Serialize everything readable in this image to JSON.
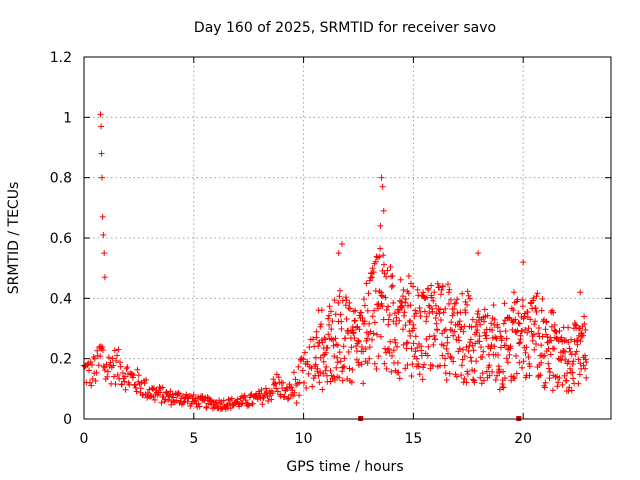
{
  "chart_data": {
    "type": "scatter",
    "title": "Day 160 of 2025, SRMTID for receiver savo",
    "xlabel": "GPS time / hours",
    "ylabel": "SRMTID / TECUs",
    "xlim": [
      0,
      24
    ],
    "ylim": [
      0,
      1.2
    ],
    "x_ticks": [
      0,
      5,
      10,
      15,
      20
    ],
    "x_tick_labels": [
      "0",
      "5",
      "10",
      "15",
      "20"
    ],
    "y_ticks": [
      0,
      0.2,
      0.4,
      0.6,
      0.8,
      1.0,
      1.2
    ],
    "y_tick_labels": [
      "0",
      "0.2",
      "0.4",
      "0.6",
      "0.8",
      "1",
      "1.2"
    ],
    "grid": true,
    "marker": "plus",
    "color": "#ff0000",
    "series": [
      {
        "name": "SRMTID",
        "envelope": {
          "x": [
            0.0,
            0.3,
            0.6,
            0.8,
            1.0,
            1.3,
            1.6,
            2.0,
            2.5,
            3.0,
            3.5,
            4.0,
            4.5,
            5.0,
            5.5,
            6.0,
            6.5,
            7.0,
            7.5,
            8.0,
            8.5,
            8.8,
            9.2,
            9.5,
            10.0,
            10.5,
            11.0,
            11.5,
            12.0,
            12.5,
            13.0,
            13.3,
            13.6,
            13.9,
            14.2,
            14.6,
            15.0,
            15.5,
            16.0,
            16.5,
            17.0,
            17.5,
            17.8,
            18.0,
            18.5,
            19.0,
            19.5,
            19.8,
            20.0,
            20.5,
            21.0,
            21.5,
            22.0,
            22.5,
            22.9
          ],
          "y": [
            0.16,
            0.15,
            0.17,
            0.22,
            0.16,
            0.18,
            0.17,
            0.14,
            0.12,
            0.09,
            0.08,
            0.07,
            0.07,
            0.06,
            0.055,
            0.05,
            0.05,
            0.055,
            0.06,
            0.07,
            0.09,
            0.12,
            0.08,
            0.1,
            0.14,
            0.19,
            0.22,
            0.28,
            0.26,
            0.23,
            0.3,
            0.36,
            0.38,
            0.34,
            0.28,
            0.32,
            0.3,
            0.28,
            0.3,
            0.28,
            0.26,
            0.25,
            0.22,
            0.24,
            0.22,
            0.2,
            0.24,
            0.26,
            0.24,
            0.28,
            0.22,
            0.19,
            0.2,
            0.22,
            0.2
          ]
        },
        "spikes": [
          {
            "x": 0.75,
            "y": 1.01
          },
          {
            "x": 0.78,
            "y": 0.97
          },
          {
            "x": 0.8,
            "y": 0.88
          },
          {
            "x": 0.82,
            "y": 0.8
          },
          {
            "x": 0.85,
            "y": 0.67
          },
          {
            "x": 0.88,
            "y": 0.61
          },
          {
            "x": 0.92,
            "y": 0.55
          },
          {
            "x": 0.95,
            "y": 0.47
          },
          {
            "x": 13.55,
            "y": 0.8
          },
          {
            "x": 13.6,
            "y": 0.77
          },
          {
            "x": 13.65,
            "y": 0.69
          },
          {
            "x": 13.5,
            "y": 0.64
          },
          {
            "x": 11.75,
            "y": 0.58
          },
          {
            "x": 11.6,
            "y": 0.55
          },
          {
            "x": 17.95,
            "y": 0.55
          },
          {
            "x": 20.0,
            "y": 0.52
          },
          {
            "x": 22.6,
            "y": 0.42
          }
        ]
      }
    ],
    "data_gaps_x": [
      12.6,
      19.8
    ]
  }
}
